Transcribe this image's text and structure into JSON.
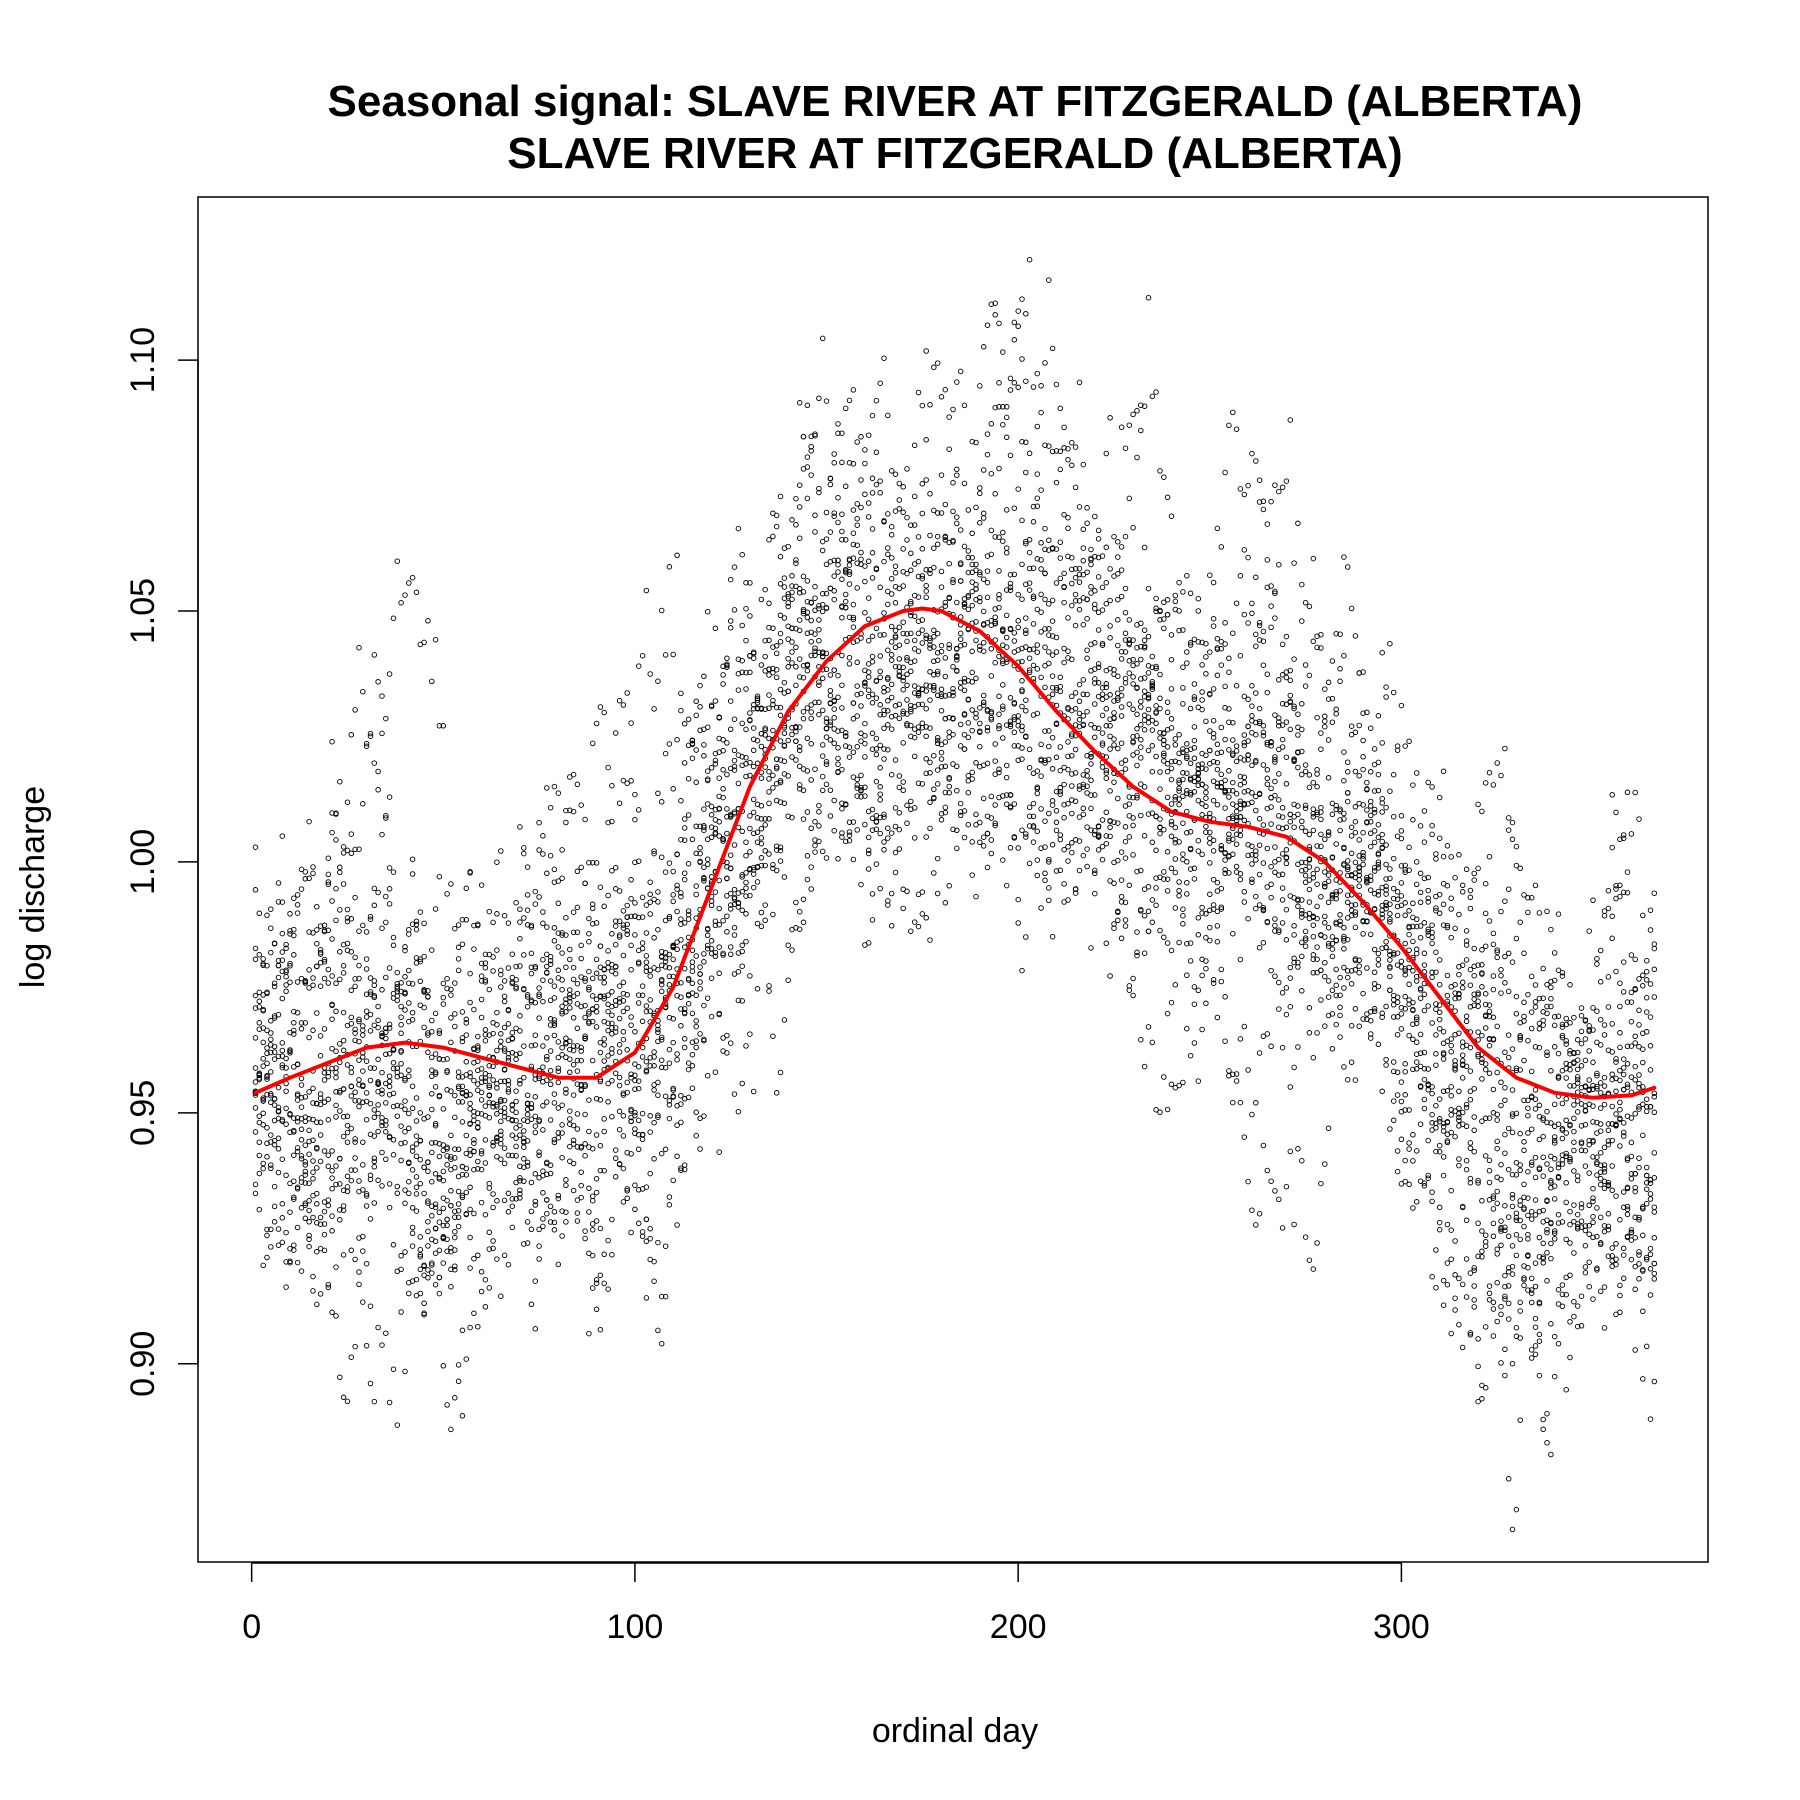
{
  "chart_data": {
    "type": "scatter",
    "title": "Seasonal signal: SLAVE RIVER AT FITZGERALD (ALBERTA)",
    "subtitle": "SLAVE RIVER AT FITZGERALD (ALBERTA)",
    "xlabel": "ordinal day",
    "ylabel": "log discharge",
    "xlim": [
      -14,
      380
    ],
    "ylim": [
      0.8605,
      1.1325
    ],
    "x_ticks": [
      0,
      100,
      200,
      300
    ],
    "y_ticks": [
      0.9,
      0.95,
      1.0,
      1.05,
      1.1
    ],
    "x_tick_labels": [
      "0",
      "100",
      "200",
      "300"
    ],
    "y_tick_labels": [
      "0.90",
      "0.95",
      "1.00",
      "1.05",
      "1.10"
    ],
    "grid": false,
    "colors": {
      "points": "#000000",
      "trend": "#ff0000"
    },
    "points_summary": {
      "count_approx": 6500,
      "x_range": [
        1,
        366
      ],
      "y_range": [
        0.867,
        1.12
      ],
      "spread_by_day": [
        {
          "x": 0,
          "mean": 0.955,
          "sd": 0.025
        },
        {
          "x": 40,
          "mean": 0.962,
          "sd": 0.028
        },
        {
          "x": 80,
          "mean": 0.958,
          "sd": 0.022
        },
        {
          "x": 110,
          "mean": 0.975,
          "sd": 0.03
        },
        {
          "x": 130,
          "mean": 1.02,
          "sd": 0.03
        },
        {
          "x": 150,
          "mean": 1.045,
          "sd": 0.022
        },
        {
          "x": 175,
          "mean": 1.05,
          "sd": 0.025
        },
        {
          "x": 200,
          "mean": 1.04,
          "sd": 0.03
        },
        {
          "x": 230,
          "mean": 1.015,
          "sd": 0.025
        },
        {
          "x": 260,
          "mean": 1.008,
          "sd": 0.025
        },
        {
          "x": 290,
          "mean": 0.998,
          "sd": 0.025
        },
        {
          "x": 320,
          "mean": 0.965,
          "sd": 0.03
        },
        {
          "x": 345,
          "mean": 0.955,
          "sd": 0.025
        },
        {
          "x": 366,
          "mean": 0.955,
          "sd": 0.025
        }
      ]
    },
    "series": [
      {
        "type": "line",
        "x": [
          1,
          10,
          20,
          30,
          40,
          50,
          60,
          70,
          80,
          90,
          100,
          110,
          120,
          130,
          140,
          150,
          160,
          170,
          175,
          180,
          190,
          200,
          210,
          220,
          230,
          240,
          250,
          260,
          270,
          280,
          290,
          300,
          310,
          320,
          330,
          340,
          350,
          360,
          366
        ],
        "y": [
          0.954,
          0.957,
          0.96,
          0.963,
          0.964,
          0.963,
          0.961,
          0.959,
          0.957,
          0.957,
          0.962,
          0.975,
          0.995,
          1.015,
          1.03,
          1.04,
          1.047,
          1.05,
          1.0505,
          1.05,
          1.046,
          1.039,
          1.03,
          1.022,
          1.015,
          1.01,
          1.008,
          1.007,
          1.005,
          1.0,
          0.992,
          0.983,
          0.973,
          0.963,
          0.957,
          0.954,
          0.953,
          0.9535,
          0.955
        ]
      }
    ]
  }
}
